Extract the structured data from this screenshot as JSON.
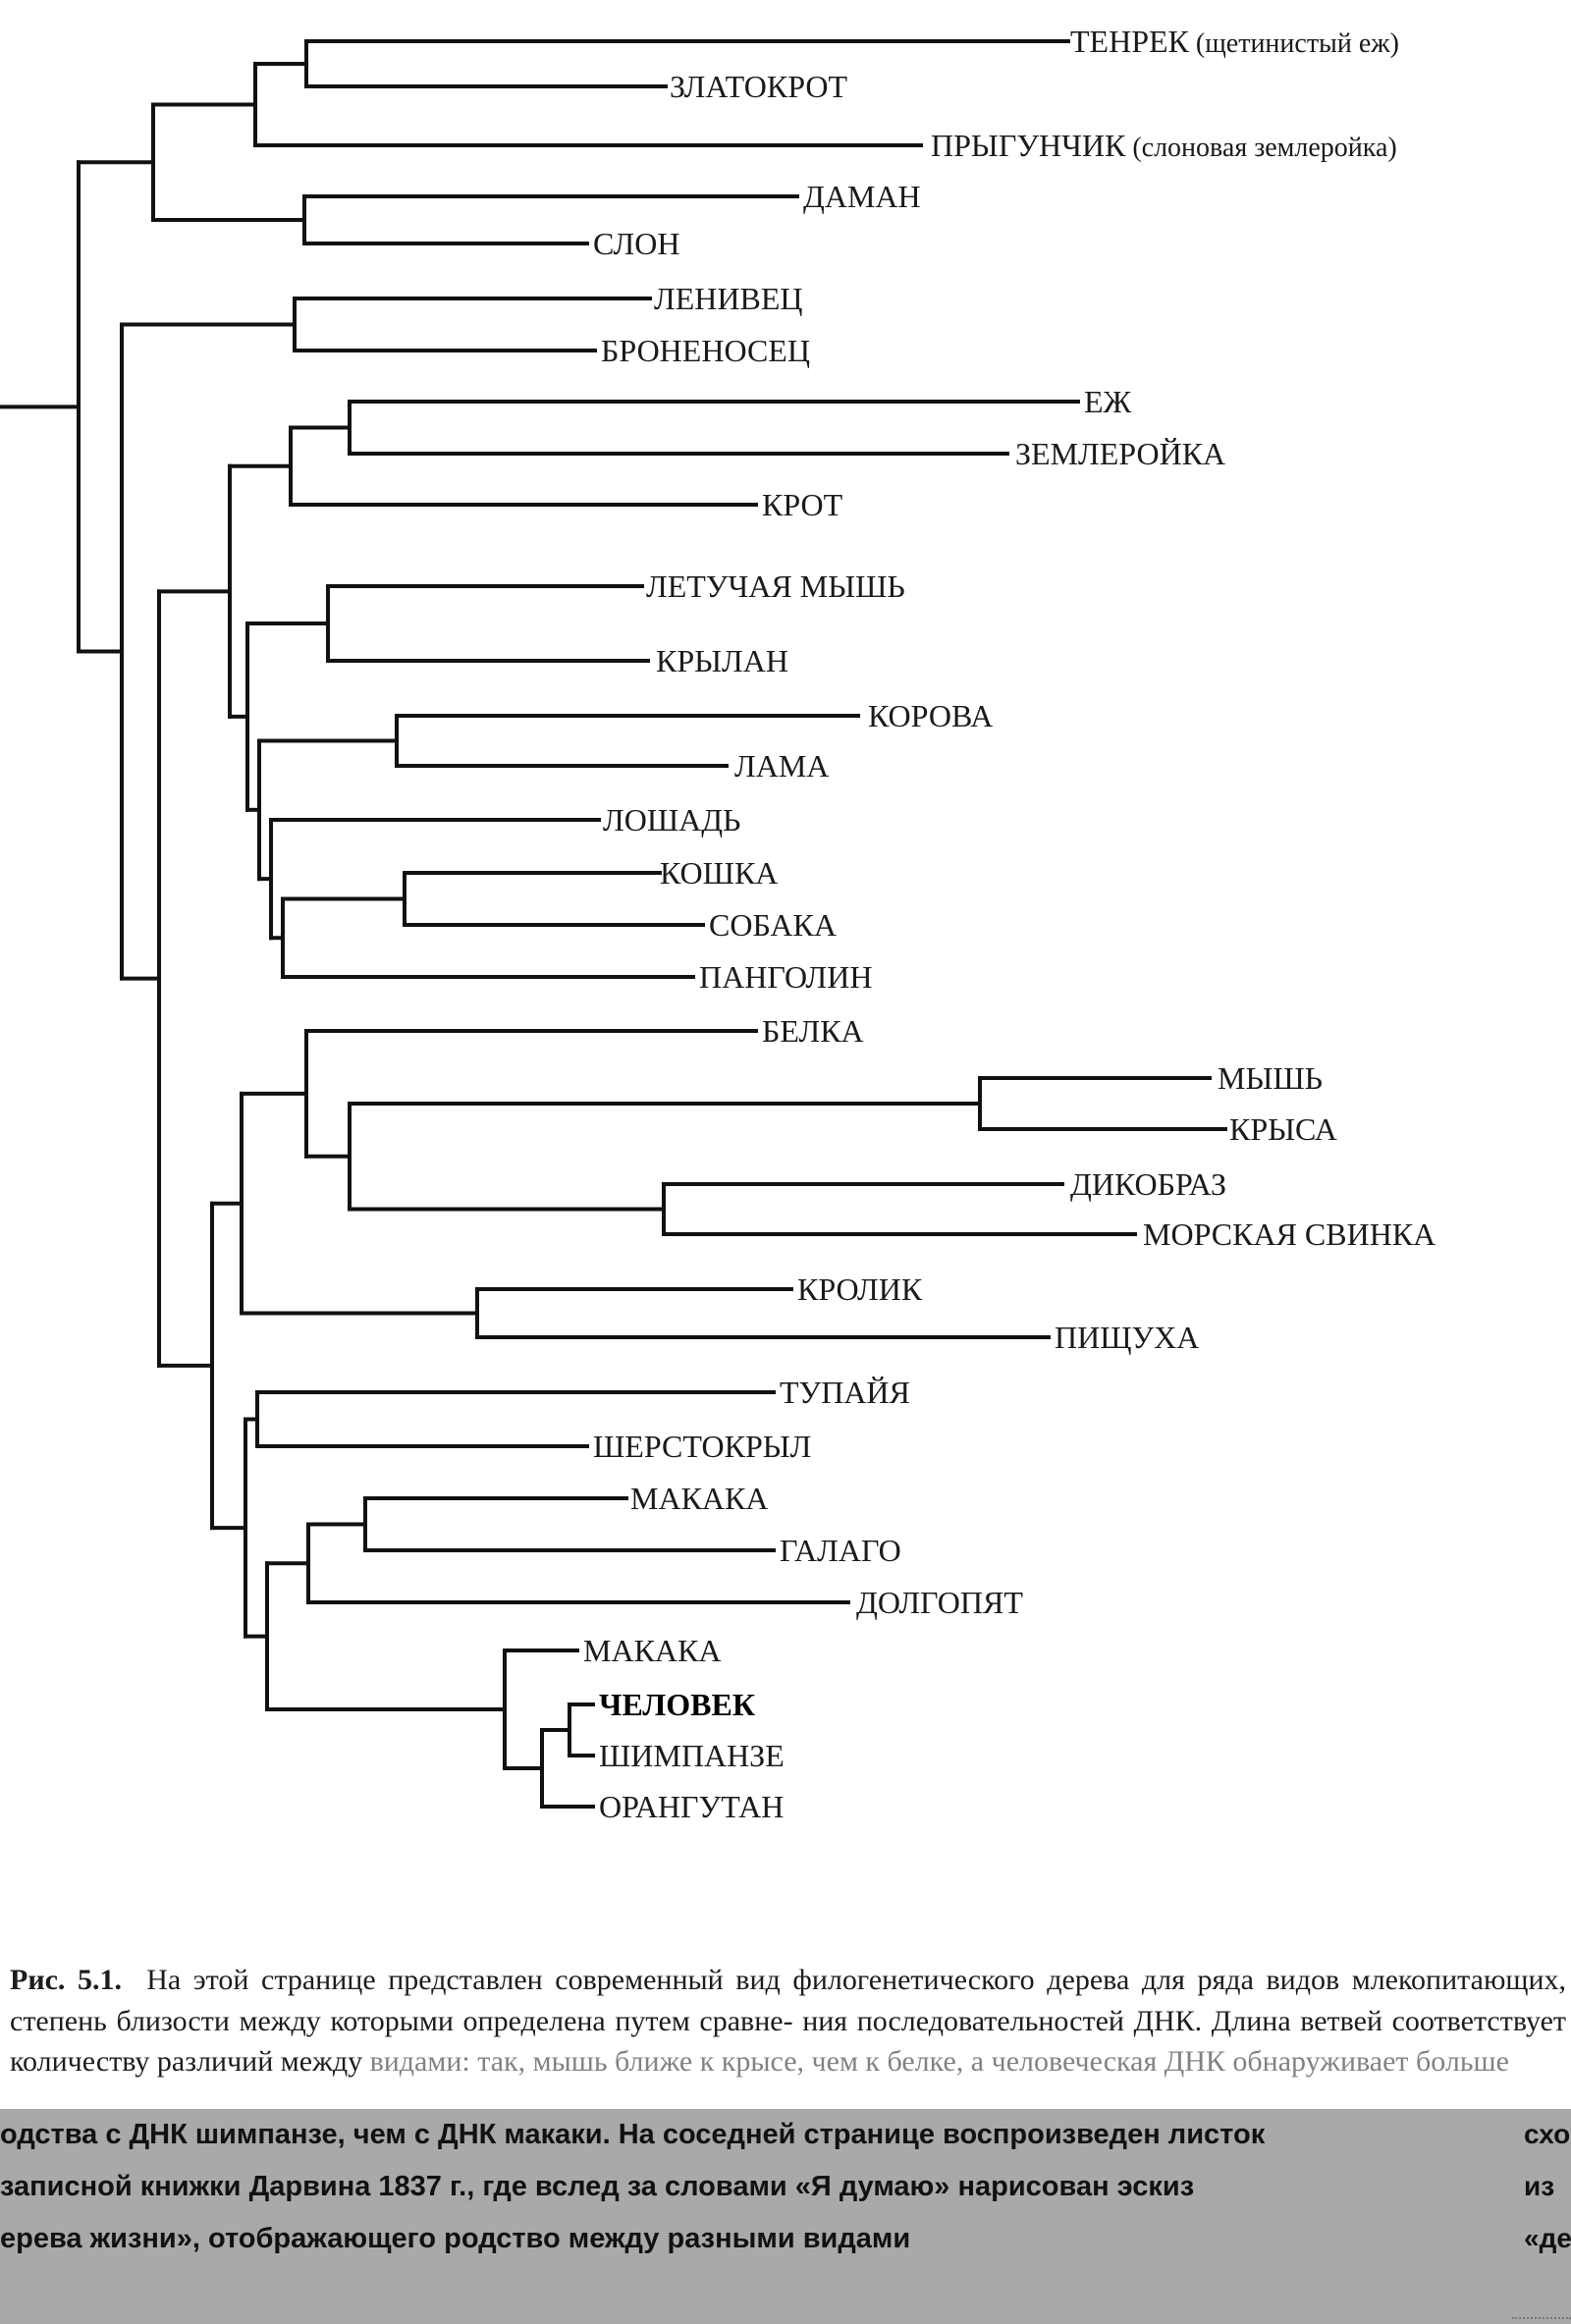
{
  "leaves": [
    {
      "id": "tenrek",
      "label": "ТЕНРЕК",
      "note": "(щетинистый еж)"
    },
    {
      "id": "zlatokrot",
      "label": "ЗЛАТОКРОТ"
    },
    {
      "id": "prygunchik",
      "label": "ПРЫГУНЧИК",
      "note": "(слоновая землеройка)"
    },
    {
      "id": "daman",
      "label": "ДАМАН"
    },
    {
      "id": "slon",
      "label": "СЛОН"
    },
    {
      "id": "lenivets",
      "label": "ЛЕНИВЕЦ"
    },
    {
      "id": "bronenosets",
      "label": "БРОНЕНОСЕЦ"
    },
    {
      "id": "ezh",
      "label": "ЕЖ"
    },
    {
      "id": "zemleroyka",
      "label": "ЗЕМЛЕРОЙКА"
    },
    {
      "id": "krot",
      "label": "КРОТ"
    },
    {
      "id": "letuchaya",
      "label": "ЛЕТУЧАЯ МЫШЬ"
    },
    {
      "id": "krylan",
      "label": "КРЫЛАН"
    },
    {
      "id": "korova",
      "label": "КОРОВА"
    },
    {
      "id": "lama",
      "label": "ЛАМА"
    },
    {
      "id": "loshad",
      "label": "ЛОШАДЬ"
    },
    {
      "id": "koshka",
      "label": "КОШКА"
    },
    {
      "id": "sobaka",
      "label": "СОБАКА"
    },
    {
      "id": "pangolin",
      "label": "ПАНГОЛИН"
    },
    {
      "id": "belka",
      "label": "БЕЛКА"
    },
    {
      "id": "mysh",
      "label": "МЫШЬ"
    },
    {
      "id": "krysa",
      "label": "КРЫСА"
    },
    {
      "id": "dikobraz",
      "label": "ДИКОБРАЗ"
    },
    {
      "id": "svinka",
      "label": "МОРСКАЯ СВИНКА"
    },
    {
      "id": "krolik",
      "label": "КРОЛИК"
    },
    {
      "id": "pishchukha",
      "label": "ПИЩУХА"
    },
    {
      "id": "tupaya",
      "label": "ТУПАЙЯ"
    },
    {
      "id": "sherstokryl",
      "label": "ШЕРСТОКРЫЛ"
    },
    {
      "id": "makaka1",
      "label": "МАКАКА"
    },
    {
      "id": "galago",
      "label": "ГАЛАГО"
    },
    {
      "id": "dolgopyat",
      "label": "ДОЛГОПЯТ"
    },
    {
      "id": "makaka2",
      "label": "МАКАКА"
    },
    {
      "id": "chelovek",
      "label": "ЧЕЛОВЕК",
      "bold": true
    },
    {
      "id": "shimpanze",
      "label": "ШИМПАНЗЕ"
    },
    {
      "id": "orangutan",
      "label": "ОРАНГУТАН"
    }
  ],
  "caption": {
    "fig_ref": "Рис. 5.1.",
    "lines": [
      "На этой странице представлен современный вид филогенетического дерева для",
      "ряда видов млекопитающих, степень близости между которыми определена путем сравне-",
      "ния последовательностей ДНК. Длина ветвей соответствует количеству различий между",
      "видами: так, мышь ближе к крысе, чем к белке, а человеческая ДНК обнаруживает больше"
    ]
  },
  "overlay": {
    "lines": [
      "одства с ДНК шимпанзе, чем с ДНК макаки. На соседней странице воспроизведен листок",
      "записной книжки Дарвина 1837 г., где вслед за словами «Я думаю» нарисован эскиз",
      "ерева жизни», отображающего родство между разными видами"
    ],
    "side_lines": [
      "схо",
      "из",
      "«де"
    ]
  }
}
